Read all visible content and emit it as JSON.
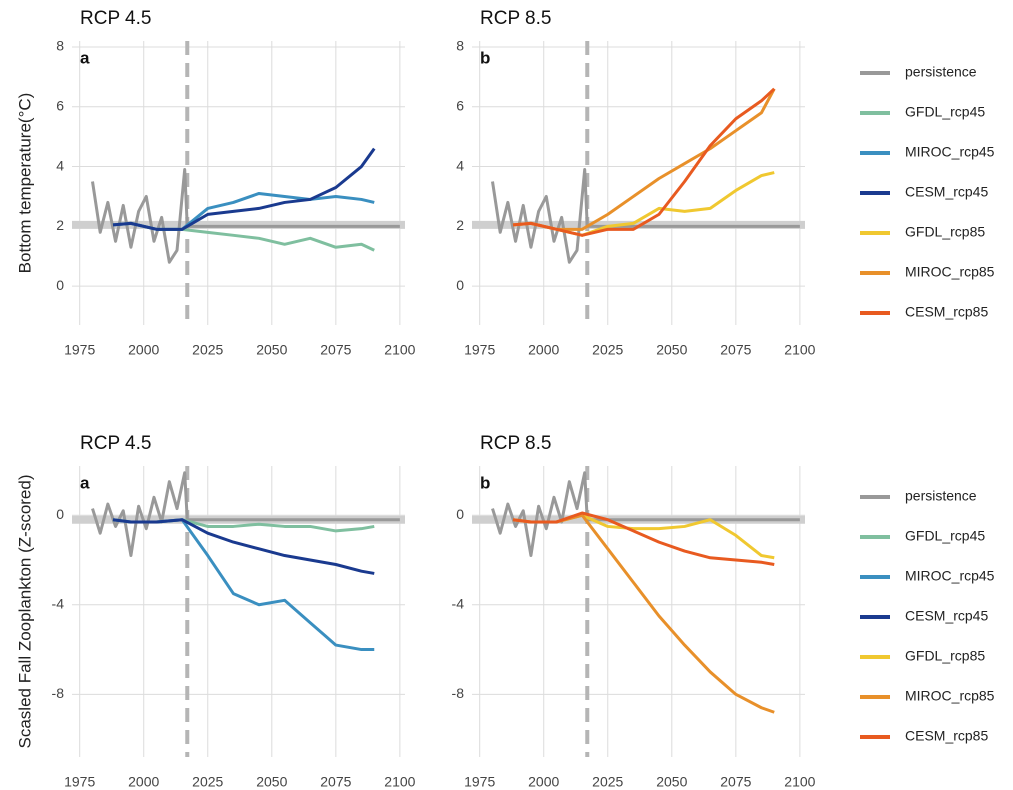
{
  "chart_data": [
    {
      "type": "line",
      "title": "RCP 4.5",
      "panel": "a",
      "ylabel": "Bottom temperature(°C)",
      "xlim": [
        1972,
        2102
      ],
      "xticks": [
        1975,
        2000,
        2025,
        2050,
        2075,
        2100
      ],
      "ylim": [
        -1.3,
        8.2
      ],
      "yticks": [
        0,
        2,
        4,
        6,
        8
      ],
      "grid": true,
      "vline": 2017,
      "hline": 2.05,
      "series": [
        {
          "name": "persistence",
          "color": "#999999",
          "x": [
            1980,
            1983,
            1986,
            1989,
            1992,
            1995,
            1998,
            2001,
            2004,
            2007,
            2010,
            2013,
            2016,
            2017,
            2100
          ],
          "values": [
            3.5,
            1.8,
            2.8,
            1.5,
            2.7,
            1.3,
            2.5,
            3.0,
            1.5,
            2.3,
            0.8,
            1.2,
            3.9,
            2.0,
            2.0
          ]
        },
        {
          "name": "GFDL_rcp45",
          "color": "#7fbf9f",
          "x": [
            1988,
            1995,
            2005,
            2015,
            2025,
            2035,
            2045,
            2055,
            2065,
            2075,
            2085,
            2090
          ],
          "values": [
            2.05,
            2.1,
            1.9,
            1.9,
            1.8,
            1.7,
            1.6,
            1.4,
            1.6,
            1.3,
            1.4,
            1.2
          ]
        },
        {
          "name": "MIROC_rcp45",
          "color": "#3a8fc0",
          "x": [
            1988,
            1995,
            2005,
            2015,
            2025,
            2035,
            2045,
            2055,
            2065,
            2075,
            2085,
            2090
          ],
          "values": [
            2.05,
            2.1,
            1.9,
            1.9,
            2.6,
            2.8,
            3.1,
            3.0,
            2.9,
            3.0,
            2.9,
            2.8
          ]
        },
        {
          "name": "CESM_rcp45",
          "color": "#1a3a8f",
          "x": [
            1988,
            1995,
            2005,
            2015,
            2025,
            2035,
            2045,
            2055,
            2065,
            2075,
            2085,
            2090
          ],
          "values": [
            2.05,
            2.1,
            1.9,
            1.9,
            2.4,
            2.5,
            2.6,
            2.8,
            2.9,
            3.3,
            4.0,
            4.6
          ]
        }
      ]
    },
    {
      "type": "line",
      "title": "RCP 8.5",
      "panel": "b",
      "xlim": [
        1972,
        2102
      ],
      "xticks": [
        1975,
        2000,
        2025,
        2050,
        2075,
        2100
      ],
      "ylim": [
        -1.3,
        8.2
      ],
      "yticks": [
        0,
        2,
        4,
        6,
        8
      ],
      "grid": true,
      "vline": 2017,
      "hline": 2.05,
      "series": [
        {
          "color": "#999999",
          "x": [
            1980,
            1983,
            1986,
            1989,
            1992,
            1995,
            1998,
            2001,
            2004,
            2007,
            2010,
            2013,
            2016,
            2017,
            2100
          ],
          "values": [
            3.5,
            1.8,
            2.8,
            1.5,
            2.7,
            1.3,
            2.5,
            3.0,
            1.5,
            2.3,
            0.8,
            1.2,
            3.9,
            2.0,
            2.0
          ]
        },
        {
          "name": "GFDL_rcp85",
          "color": "#f0c830",
          "x": [
            1988,
            1995,
            2005,
            2015,
            2025,
            2035,
            2045,
            2055,
            2065,
            2075,
            2085,
            2090
          ],
          "values": [
            2.05,
            2.1,
            1.9,
            1.7,
            2.0,
            2.1,
            2.6,
            2.5,
            2.6,
            3.2,
            3.7,
            3.8
          ]
        },
        {
          "name": "MIROC_rcp85",
          "color": "#e8902a",
          "x": [
            1988,
            1995,
            2005,
            2015,
            2025,
            2035,
            2045,
            2055,
            2065,
            2075,
            2085,
            2090
          ],
          "values": [
            2.05,
            2.1,
            1.9,
            1.9,
            2.4,
            3.0,
            3.6,
            4.1,
            4.6,
            5.2,
            5.8,
            6.6
          ]
        },
        {
          "name": "CESM_rcp85",
          "color": "#e85a20",
          "x": [
            1988,
            1995,
            2005,
            2015,
            2025,
            2035,
            2045,
            2055,
            2065,
            2075,
            2085,
            2090
          ],
          "values": [
            2.05,
            2.1,
            1.9,
            1.7,
            1.9,
            1.9,
            2.4,
            3.5,
            4.7,
            5.6,
            6.2,
            6.6
          ]
        }
      ]
    },
    {
      "type": "line",
      "title": "RCP 4.5",
      "panel": "a",
      "ylabel": "Scasled Fall Zooplankton (Z-scored)",
      "xlim": [
        1972,
        2102
      ],
      "xticks": [
        1975,
        2000,
        2025,
        2050,
        2075,
        2100
      ],
      "ylim": [
        -10.8,
        2.2
      ],
      "yticks": [
        -8,
        -4,
        0
      ],
      "grid": true,
      "vline": 2017,
      "hline": -0.2,
      "series": [
        {
          "name": "persistence",
          "color": "#999999",
          "x": [
            1980,
            1983,
            1986,
            1989,
            1992,
            1995,
            1998,
            2001,
            2004,
            2007,
            2010,
            2013,
            2016,
            2017,
            2100
          ],
          "values": [
            0.3,
            -0.8,
            0.5,
            -0.5,
            0.2,
            -1.8,
            0.4,
            -0.6,
            0.8,
            -0.3,
            1.5,
            0.3,
            1.9,
            -0.2,
            -0.2
          ]
        },
        {
          "name": "GFDL_rcp45",
          "color": "#7fbf9f",
          "x": [
            1988,
            1995,
            2005,
            2015,
            2025,
            2035,
            2045,
            2055,
            2065,
            2075,
            2085,
            2090
          ],
          "values": [
            -0.2,
            -0.3,
            -0.3,
            -0.2,
            -0.5,
            -0.5,
            -0.4,
            -0.5,
            -0.5,
            -0.7,
            -0.6,
            -0.5
          ]
        },
        {
          "name": "MIROC_rcp45",
          "color": "#3a8fc0",
          "x": [
            1988,
            1995,
            2005,
            2015,
            2025,
            2035,
            2045,
            2055,
            2065,
            2075,
            2085,
            2090
          ],
          "values": [
            -0.2,
            -0.3,
            -0.3,
            -0.2,
            -1.8,
            -3.5,
            -4.0,
            -3.8,
            -4.8,
            -5.8,
            -6.0,
            -6.0
          ]
        },
        {
          "name": "CESM_rcp45",
          "color": "#1a3a8f",
          "x": [
            1988,
            1995,
            2005,
            2015,
            2025,
            2035,
            2045,
            2055,
            2065,
            2075,
            2085,
            2090
          ],
          "values": [
            -0.2,
            -0.3,
            -0.3,
            -0.2,
            -0.8,
            -1.2,
            -1.5,
            -1.8,
            -2.0,
            -2.2,
            -2.5,
            -2.6
          ]
        }
      ]
    },
    {
      "type": "line",
      "title": "RCP 8.5",
      "panel": "b",
      "xlim": [
        1972,
        2102
      ],
      "xticks": [
        1975,
        2000,
        2025,
        2050,
        2075,
        2100
      ],
      "ylim": [
        -10.8,
        2.2
      ],
      "yticks": [
        -8,
        -4,
        0
      ],
      "grid": true,
      "vline": 2017,
      "hline": -0.2,
      "series": [
        {
          "color": "#999999",
          "x": [
            1980,
            1983,
            1986,
            1989,
            1992,
            1995,
            1998,
            2001,
            2004,
            2007,
            2010,
            2013,
            2016,
            2017,
            2100
          ],
          "values": [
            0.3,
            -0.8,
            0.5,
            -0.5,
            0.2,
            -1.8,
            0.4,
            -0.6,
            0.8,
            -0.3,
            1.5,
            0.3,
            1.9,
            -0.2,
            -0.2
          ]
        },
        {
          "name": "GFDL_rcp85",
          "color": "#f0c830",
          "x": [
            1988,
            1995,
            2005,
            2015,
            2025,
            2035,
            2045,
            2055,
            2065,
            2075,
            2085,
            2090
          ],
          "values": [
            -0.2,
            -0.3,
            -0.3,
            0,
            -0.5,
            -0.6,
            -0.6,
            -0.5,
            -0.2,
            -0.9,
            -1.8,
            -1.9
          ]
        },
        {
          "name": "MIROC_rcp85",
          "color": "#e8902a",
          "x": [
            1988,
            1995,
            2005,
            2015,
            2025,
            2035,
            2045,
            2055,
            2065,
            2075,
            2085,
            2090
          ],
          "values": [
            -0.2,
            -0.3,
            -0.3,
            0,
            -1.5,
            -3.0,
            -4.5,
            -5.8,
            -7.0,
            -8.0,
            -8.6,
            -8.8
          ]
        },
        {
          "name": "CESM_rcp85",
          "color": "#e85a20",
          "x": [
            1988,
            1995,
            2005,
            2015,
            2025,
            2035,
            2045,
            2055,
            2065,
            2075,
            2085,
            2090
          ],
          "values": [
            -0.2,
            -0.3,
            -0.3,
            0.1,
            -0.2,
            -0.7,
            -1.2,
            -1.6,
            -1.9,
            -2.0,
            -2.1,
            -2.2
          ]
        }
      ]
    }
  ]
}
